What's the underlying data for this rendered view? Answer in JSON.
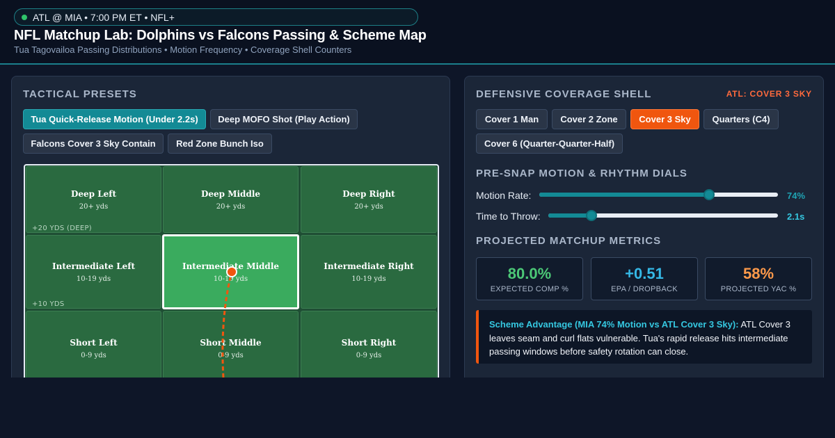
{
  "header": {
    "game_info": "ATL @ MIA • 7:00 PM ET • NFL+",
    "title": "NFL Matchup Lab: Dolphins vs Falcons Passing & Scheme Map",
    "subtitle": "Tua Tagovailoa Passing Distributions • Motion Frequency • Coverage Shell Counters"
  },
  "presets": {
    "title": "TACTICAL PRESETS",
    "items": [
      {
        "label": "Tua Quick-Release Motion (Under 2.2s)",
        "active": true
      },
      {
        "label": "Deep MOFO Shot (Play Action)",
        "active": false
      },
      {
        "label": "Falcons Cover 3 Sky Contain",
        "active": false
      },
      {
        "label": "Red Zone Bunch Iso",
        "active": false
      }
    ]
  },
  "field": {
    "zones": [
      {
        "name": "Deep Left",
        "range": "20+ yds"
      },
      {
        "name": "Deep Middle",
        "range": "20+ yds"
      },
      {
        "name": "Deep Right",
        "range": "20+ yds"
      },
      {
        "name": "Intermediate Left",
        "range": "10-19 yds"
      },
      {
        "name": "Intermediate Middle",
        "range": "10-19 yds",
        "selected": true
      },
      {
        "name": "Intermediate Right",
        "range": "10-19 yds"
      },
      {
        "name": "Short Left",
        "range": "0-9 yds"
      },
      {
        "name": "Short Middle",
        "range": "0-9 yds"
      },
      {
        "name": "Short Right",
        "range": "0-9 yds"
      }
    ],
    "markers": {
      "deep": "+20 YDS (DEEP)",
      "mid": "+10 YDS"
    },
    "colors": {
      "route": "#f0560f",
      "selected_zone": "#3aab5e"
    }
  },
  "coverage": {
    "title": "DEFENSIVE COVERAGE SHELL",
    "tag": "ATL: COVER 3 SKY",
    "options": [
      {
        "label": "Cover 1 Man",
        "active": false
      },
      {
        "label": "Cover 2 Zone",
        "active": false
      },
      {
        "label": "Cover 3 Sky",
        "active": true
      },
      {
        "label": "Quarters (C4)",
        "active": false
      },
      {
        "label": "Cover 6 (Quarter-Quarter-Half)",
        "active": false
      }
    ]
  },
  "dials": {
    "title": "PRE-SNAP MOTION & RHYTHM DIALS",
    "motion": {
      "label": "Motion Rate:",
      "value": "74%",
      "fraction": 0.74
    },
    "throw": {
      "label": "Time to Throw:",
      "value": "2.1s",
      "fraction": 0.19
    }
  },
  "metrics": {
    "title": "PROJECTED MATCHUP METRICS",
    "items": [
      {
        "value": "80.0%",
        "label": "EXPECTED COMP %",
        "color": "#4cc877"
      },
      {
        "value": "+0.51",
        "label": "EPA / DROPBACK",
        "color": "#35b8e6"
      },
      {
        "value": "58%",
        "label": "PROJECTED YAC %",
        "color": "#ff9a4a"
      }
    ]
  },
  "callout": {
    "lead": "Scheme Advantage (MIA 74% Motion vs ATL Cover 3 Sky):",
    "body": " ATL Cover 3 leaves seam and curl flats vulnerable. Tua's rapid release hits intermediate passing windows before safety rotation can close."
  }
}
